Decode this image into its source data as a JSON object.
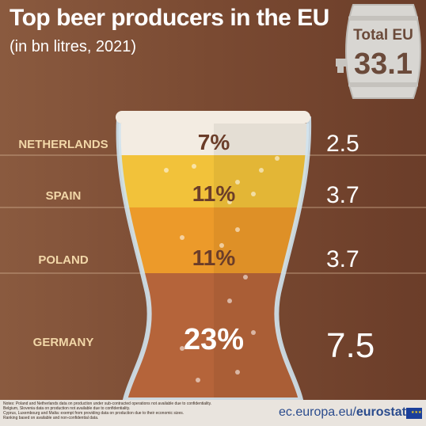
{
  "title": "Top beer producers in the EU",
  "subtitle": "(in bn litres, 2021)",
  "total": {
    "label": "Total EU",
    "value": "33.1"
  },
  "footer": {
    "notes": [
      "Notes: Poland and Netherlands data on production under sub-contracted operations not available due to confidentiality.",
      "Belgium, Slovenia data on production not available due to confidentiality.",
      "Cyprus, Luxembourg and Malta: exempt from providing data on production due to their economic sizes.",
      "Ranking based on available and non-confidential data."
    ],
    "site_prefix": "ec.europa.eu/",
    "site_brand": "eurostat"
  },
  "colors": {
    "foam": "#f3ece2",
    "layer_light": "#f2c23a",
    "layer_mid": "#ec9a2a",
    "layer_dark": "#b5643a",
    "glass": "#cfe3f0",
    "text_dark": "#6b3d29"
  },
  "chart_data": {
    "type": "bar",
    "title": "Top beer producers in the EU",
    "subtitle": "(in bn litres, 2021)",
    "categories": [
      "NETHERLANDS",
      "SPAIN",
      "POLAND",
      "GERMANY"
    ],
    "values": [
      2.5,
      3.7,
      3.7,
      7.5
    ],
    "shares": [
      "7%",
      "11%",
      "11%",
      "23%"
    ],
    "unit": "bn litres",
    "total": 33.1
  }
}
